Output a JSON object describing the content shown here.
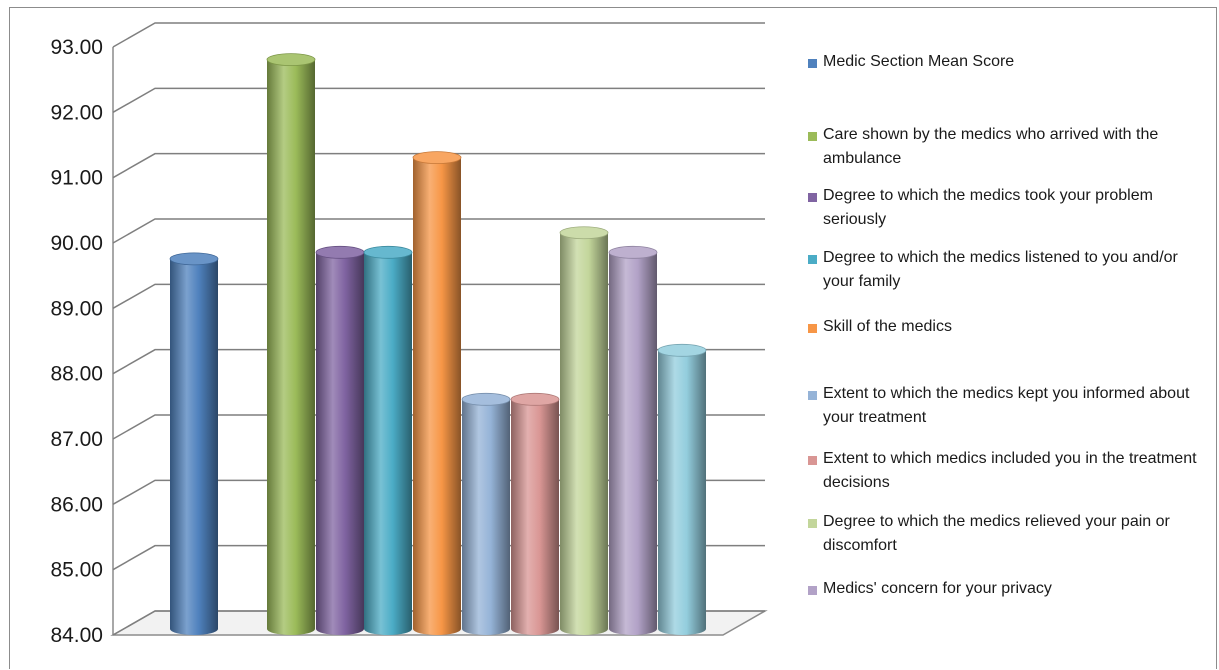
{
  "chart_data": {
    "type": "bar",
    "title": "",
    "xlabel": "",
    "ylabel": "",
    "ylim": [
      84,
      93
    ],
    "yticks": [
      "84.00",
      "85.00",
      "86.00",
      "87.00",
      "88.00",
      "89.00",
      "90.00",
      "91.00",
      "92.00",
      "93.00"
    ],
    "grid": true,
    "legend_position": "right",
    "series": [
      {
        "name": "Medic Section Mean Score",
        "value": 89.65,
        "color": "#4f81bd"
      },
      {
        "name": "Care shown by the medics who arrived with the ambulance",
        "value": 92.7,
        "color": "#9bbb59"
      },
      {
        "name": "Degree to which the medics took your problem seriously",
        "value": 89.75,
        "color": "#8064a2"
      },
      {
        "name": "Degree to which the medics listened to you and/or your family",
        "value": 89.75,
        "color": "#4bacc6"
      },
      {
        "name": "Skill of the medics",
        "value": 91.2,
        "color": "#f79646"
      },
      {
        "name": "Extent to which the medics kept you informed about your treatment",
        "value": 87.5,
        "color": "#95b3d7"
      },
      {
        "name": "Extent to which medics included you in the treatment decisions",
        "value": 87.5,
        "color": "#d99694"
      },
      {
        "name": "Degree to which the medics relieved your pain or discomfort",
        "value": 90.05,
        "color": "#c3d69b"
      },
      {
        "name": "Medics' concern for your privacy",
        "value": 89.75,
        "color": "#b2a2c7"
      },
      {
        "name": "",
        "value": 88.25,
        "color": "#93cddd"
      }
    ]
  }
}
